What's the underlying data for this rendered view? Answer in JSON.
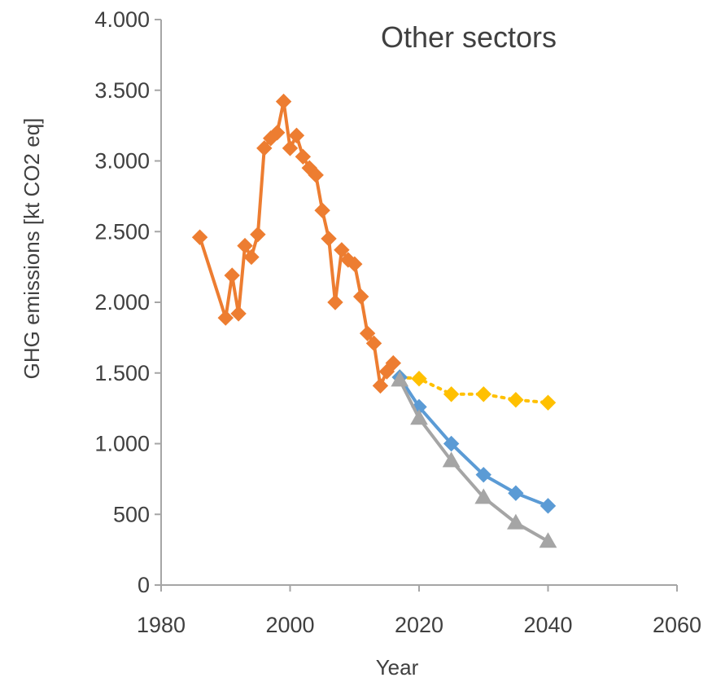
{
  "chart_data": {
    "type": "line",
    "title": "Other sectors",
    "xlabel": "Year",
    "ylabel": "GHG emissions [kt CO2 eq]",
    "xlim": [
      1980,
      2060
    ],
    "ylim": [
      0,
      4000
    ],
    "x_ticks": [
      1980,
      2000,
      2020,
      2040,
      2060
    ],
    "x_tick_labels": [
      "1980",
      "2000",
      "2020",
      "2040",
      "2060"
    ],
    "y_ticks": [
      0,
      500,
      1000,
      1500,
      2000,
      2500,
      3000,
      3500,
      4000
    ],
    "y_tick_labels": [
      "0",
      "500",
      "1.000",
      "1.500",
      "2.000",
      "2.500",
      "3.000",
      "3.500",
      "4.000"
    ],
    "grid": false,
    "legend": "none",
    "series": [
      {
        "color": "#ED7D31",
        "marker": "diamond",
        "line": "solid",
        "x": [
          1986,
          1990,
          1991,
          1992,
          1993,
          1994,
          1995,
          1996,
          1997,
          1998,
          1999,
          2000,
          2001,
          2002,
          2003,
          2004,
          2005,
          2006,
          2007,
          2008,
          2009,
          2010,
          2011,
          2012,
          2013,
          2014,
          2015,
          2016
        ],
        "y": [
          2460,
          1890,
          2190,
          1920,
          2400,
          2320,
          2480,
          3090,
          3160,
          3200,
          3420,
          3090,
          3180,
          3030,
          2950,
          2900,
          2650,
          2450,
          2000,
          2370,
          2300,
          2270,
          2040,
          1780,
          1710,
          1410,
          1510,
          1570
        ]
      },
      {
        "color": "#FFC000",
        "marker": "diamond",
        "line": "dotted",
        "x": [
          2017,
          2020,
          2025,
          2030,
          2035,
          2040
        ],
        "y": [
          1470,
          1460,
          1350,
          1350,
          1310,
          1290
        ]
      },
      {
        "color": "#5B9BD5",
        "marker": "diamond",
        "line": "solid",
        "x": [
          2017,
          2020,
          2025,
          2030,
          2035,
          2040
        ],
        "y": [
          1470,
          1260,
          1000,
          780,
          650,
          560
        ]
      },
      {
        "color": "#A5A5A5",
        "marker": "triangle",
        "line": "solid",
        "x": [
          2017,
          2020,
          2025,
          2030,
          2035,
          2040
        ],
        "y": [
          1450,
          1180,
          880,
          620,
          440,
          310
        ]
      }
    ]
  }
}
